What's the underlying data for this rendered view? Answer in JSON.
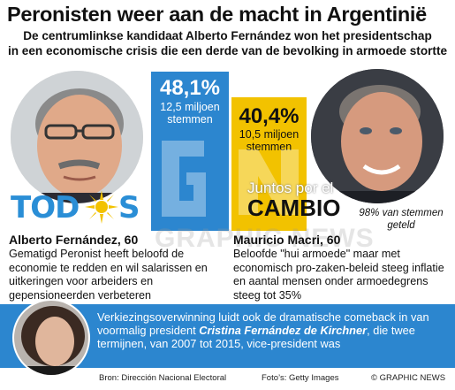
{
  "title": "Peronisten weer aan de macht in Argentinië",
  "subtitle_line1": "De centrumlinkse kandidaat Alberto Fernández won het presidentschap",
  "subtitle_line2": "in een economische crisis die een derde van de bevolking in armoede stortte",
  "chart_data": {
    "type": "bar",
    "categories": [
      "Alberto Fernández",
      "Mauricio Macri"
    ],
    "values": [
      48.1,
      40.4
    ],
    "value_labels": [
      "48,1%",
      "40,4%"
    ],
    "vote_labels": [
      "12,5 miljoen stemmen",
      "10,5 miljoen stemmen"
    ],
    "votes_millions": [
      12.5,
      10.5
    ],
    "colors": [
      "#2c86cf",
      "#f2c200"
    ],
    "note": "98% van stemmen geteld"
  },
  "bars": [
    {
      "pct": "48,1%",
      "votes": "12,5 miljoen",
      "unit": "stemmen"
    },
    {
      "pct": "40,4%",
      "votes": "10,5 miljoen",
      "unit": "stemmen"
    }
  ],
  "logos": {
    "todos": "TOD S",
    "juntos_top": "Juntos por el",
    "juntos_bottom": "CAMBIO"
  },
  "note": "98% van stemmen geteld",
  "candidates": {
    "fernandez": {
      "name": "Alberto Fernández, 60",
      "desc": "Gematigd Peronist heeft beloofd de economie te redden en wil salarissen en uitkeringen voor arbeiders en gepensioneerden verbeteren"
    },
    "macri": {
      "name": "Mauricio Macri, 60",
      "desc": "Beloofde \"hui armoede\" maar met economisch pro-zaken-beleid steeg inflatie en aantal mensen onder armoedegrens steeg tot 35%"
    }
  },
  "bottom": {
    "text_before": "Verkiezingsoverwinning luidt ook de dramatische comeback in van voormalig president ",
    "name": "Cristina Fernández de Kirchner",
    "text_after": ", die twee termijnen, van 2007 tot 2015, vice-president was"
  },
  "footer": {
    "source": "Bron: Dirección Nacional Electoral",
    "photos": "Foto’s: Getty Images",
    "credit": "© GRAPHIC NEWS"
  },
  "watermark": "GRAPHIC NEWS"
}
